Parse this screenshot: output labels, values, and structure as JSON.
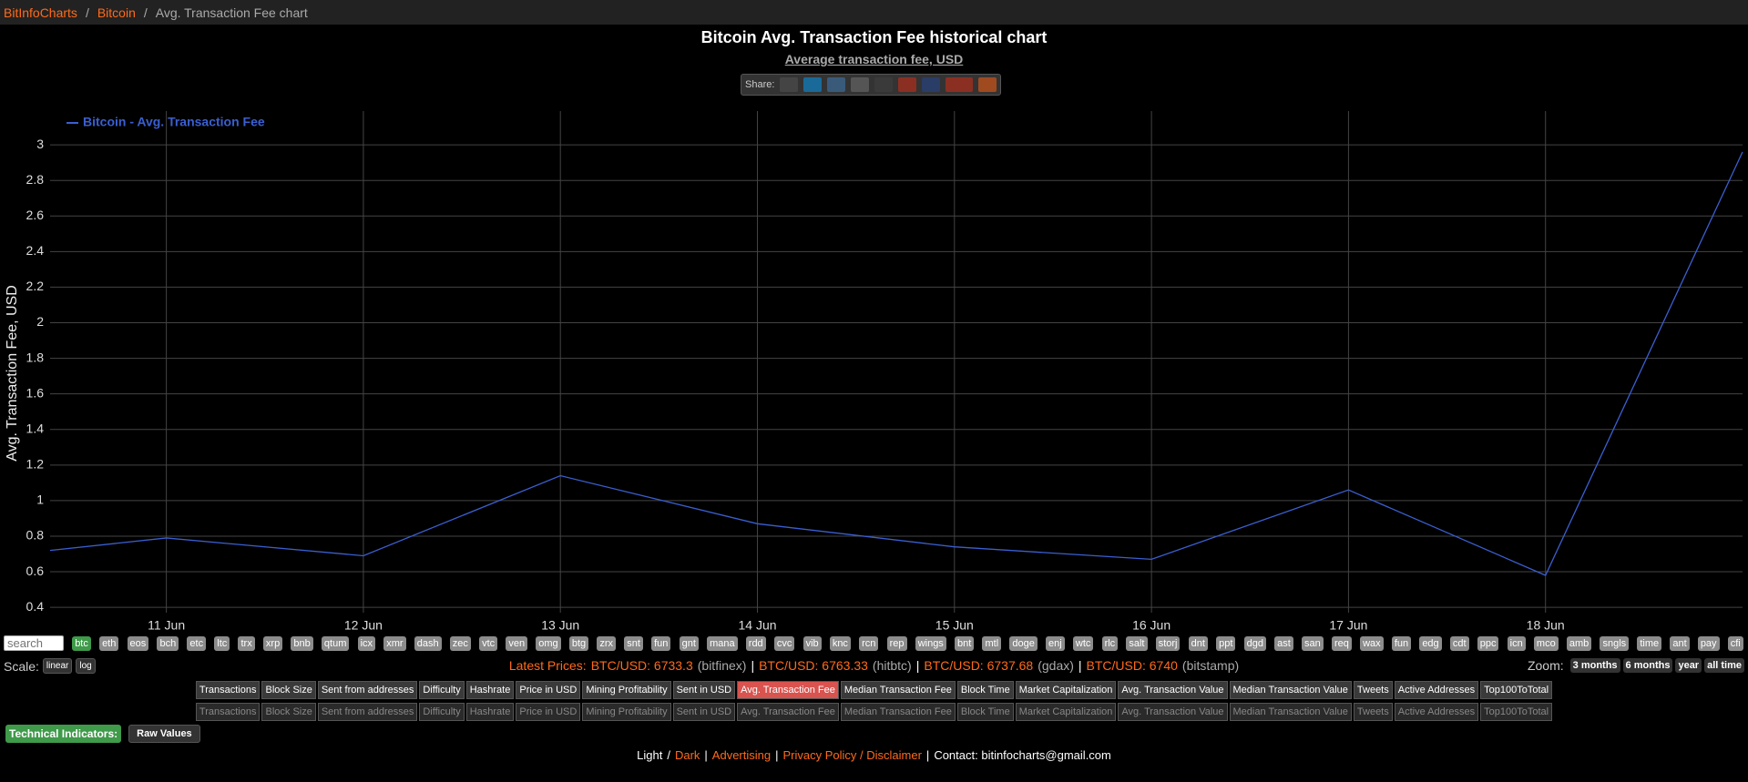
{
  "breadcrumb": [
    {
      "text": "BitInfoCharts",
      "link": true
    },
    {
      "text": "/",
      "link": false
    },
    {
      "text": "Bitcoin",
      "link": true
    },
    {
      "text": "/",
      "link": false
    },
    {
      "text": "Avg. Transaction Fee chart",
      "link": false
    }
  ],
  "chart_data": {
    "type": "line",
    "title": "Bitcoin Avg. Transaction Fee historical chart",
    "subtitle": "Average transaction fee, USD",
    "y_label": "Avg. Transaction Fee, USD",
    "x": [
      10.41,
      11,
      12,
      13,
      14,
      15,
      16,
      17,
      18,
      19
    ],
    "series": [
      {
        "name": "Bitcoin - Avg. Transaction Fee",
        "color": "#3a5fd0",
        "values": [
          0.72,
          0.79,
          0.69,
          1.14,
          0.87,
          0.74,
          0.67,
          1.06,
          0.58,
          2.96
        ]
      }
    ],
    "xlim": [
      10.41,
      19
    ],
    "xticks": [
      {
        "value": 11,
        "label": "11 Jun"
      },
      {
        "value": 12,
        "label": "12 Jun"
      },
      {
        "value": 13,
        "label": "13 Jun"
      },
      {
        "value": 14,
        "label": "14 Jun"
      },
      {
        "value": 15,
        "label": "15 Jun"
      },
      {
        "value": 16,
        "label": "16 Jun"
      },
      {
        "value": 17,
        "label": "17 Jun"
      },
      {
        "value": 18,
        "label": "18 Jun"
      }
    ],
    "ylim": [
      0.37,
      3.19
    ],
    "yticks": [
      0.4,
      0.6,
      0.8,
      1,
      1.2,
      1.4,
      1.6,
      1.8,
      2,
      2.2,
      2.4,
      2.6,
      2.8,
      3
    ],
    "grid": true,
    "legend": "top-left"
  },
  "share_label": "Share:",
  "search_placeholder": "search",
  "coins": [
    "btc",
    "eth",
    "eos",
    "bch",
    "etc",
    "ltc",
    "trx",
    "xrp",
    "bnb",
    "qtum",
    "icx",
    "xmr",
    "dash",
    "zec",
    "vtc",
    "ven",
    "omg",
    "btg",
    "zrx",
    "snt",
    "fun",
    "gnt",
    "mana",
    "rdd",
    "cvc",
    "vib",
    "knc",
    "rcn",
    "rep",
    "wings",
    "bnt",
    "mtl",
    "doge",
    "enj",
    "wtc",
    "rlc",
    "salt",
    "storj",
    "dnt",
    "ppt",
    "dgd",
    "ast",
    "san",
    "req",
    "wax",
    "fun",
    "edg",
    "cdt",
    "ppc",
    "icn",
    "mco",
    "amb",
    "sngls",
    "time",
    "ant",
    "pay",
    "cfi"
  ],
  "active_coin": "btc",
  "scale": {
    "label": "Scale:",
    "options": [
      "linear",
      "log"
    ]
  },
  "prices": {
    "label": "Latest Prices:",
    "separator": "|",
    "items": [
      {
        "pair": "BTC/USD: 6733.3",
        "source": "(bitfinex)"
      },
      {
        "pair": "BTC/USD: 6763.33",
        "source": "(hitbtc)"
      },
      {
        "pair": "BTC/USD: 6737.68",
        "source": "(gdax)"
      },
      {
        "pair": "BTC/USD: 6740",
        "source": "(bitstamp)"
      }
    ]
  },
  "zoom": {
    "label": "Zoom:",
    "options": [
      "3 months",
      "6 months",
      "year",
      "all time"
    ]
  },
  "metrics": {
    "active": "Avg. Transaction Fee",
    "row1": [
      "Transactions",
      "Block Size",
      "Sent from addresses",
      "Difficulty",
      "Hashrate",
      "Price in USD",
      "Mining Profitability",
      "Sent in USD",
      "Avg. Transaction Fee",
      "Median Transaction Fee",
      "Block Time",
      "Market Capitalization",
      "Avg. Transaction Value",
      "Median Transaction Value",
      "Tweets",
      "Active Addresses",
      "Top100ToTotal"
    ],
    "row2": [
      "Transactions",
      "Block Size",
      "Sent from addresses",
      "Difficulty",
      "Hashrate",
      "Price in USD",
      "Mining Profitability",
      "Sent in USD",
      "Avg. Transaction Fee",
      "Median Transaction Fee",
      "Block Time",
      "Market Capitalization",
      "Avg. Transaction Value",
      "Median Transaction Value",
      "Tweets",
      "Active Addresses",
      "Top100ToTotal"
    ]
  },
  "technical": {
    "label": "Technical Indicators:",
    "button": "Raw Values"
  },
  "footer": [
    {
      "text": "Light",
      "link": false
    },
    {
      "text": "/",
      "link": false
    },
    {
      "text": "Dark",
      "link": true
    },
    {
      "text": "|",
      "link": false
    },
    {
      "text": "Advertising",
      "link": true
    },
    {
      "text": "|",
      "link": false
    },
    {
      "text": "Privacy Policy / Disclaimer",
      "link": true
    },
    {
      "text": "|",
      "link": false
    },
    {
      "text": "Contact: bitinfocharts@gmail.com",
      "link": false
    }
  ]
}
